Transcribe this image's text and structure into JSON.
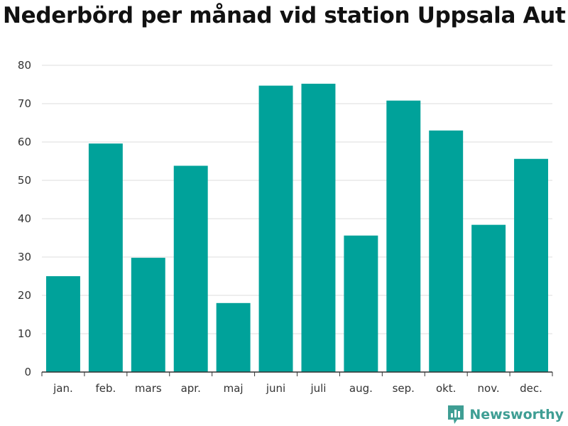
{
  "title": "Nederbörd per månad vid station Uppsala Aut",
  "brand": {
    "name": "Newsworthy",
    "color": "#3f9e94",
    "icon": "bar-chart-logo-icon"
  },
  "colors": {
    "bar": "#00a29a",
    "grid": "#dddddd",
    "axis": "#333333"
  },
  "chart_data": {
    "type": "bar",
    "title": "Nederbörd per månad vid station Uppsala Aut",
    "xlabel": "",
    "ylabel": "",
    "categories": [
      "jan.",
      "feb.",
      "mars",
      "apr.",
      "maj",
      "juni",
      "juli",
      "aug.",
      "sep.",
      "okt.",
      "nov.",
      "dec."
    ],
    "values": [
      25.0,
      59.6,
      29.8,
      53.8,
      18.0,
      74.7,
      75.2,
      35.6,
      70.8,
      63.0,
      38.4,
      55.6
    ],
    "ylim": [
      0,
      80
    ],
    "yticks": [
      0,
      10,
      20,
      30,
      40,
      50,
      60,
      70,
      80
    ],
    "grid": true,
    "legend": "none"
  }
}
